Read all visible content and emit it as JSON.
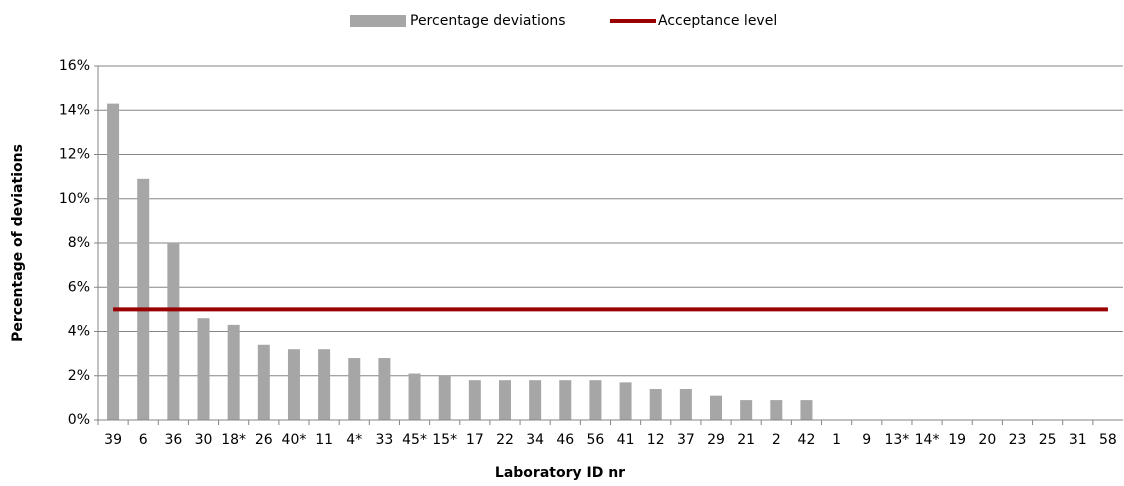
{
  "chart_data": {
    "type": "bar",
    "xlabel": "Laboratory ID nr",
    "ylabel": "Percentage of  deviations",
    "categories": [
      "39",
      "6",
      "36",
      "30",
      "18*",
      "26",
      "40*",
      "11",
      "4*",
      "33",
      "45*",
      "15*",
      "17",
      "22",
      "34",
      "46",
      "56",
      "41",
      "12",
      "37",
      "29",
      "21",
      "2",
      "42",
      "1",
      "9",
      "13*",
      "14*",
      "19",
      "20",
      "23",
      "25",
      "31",
      "58"
    ],
    "series": [
      {
        "name": "Percentage deviations",
        "type": "bar",
        "color": "#a6a6a6",
        "values": [
          14.3,
          10.9,
          8.0,
          4.6,
          4.3,
          3.4,
          3.2,
          3.2,
          2.8,
          2.8,
          2.1,
          2.0,
          1.8,
          1.8,
          1.8,
          1.8,
          1.8,
          1.7,
          1.4,
          1.4,
          1.1,
          0.9,
          0.9,
          0.9,
          0,
          0,
          0,
          0,
          0,
          0,
          0,
          0,
          0,
          0
        ]
      },
      {
        "name": "Acceptance level",
        "type": "line",
        "color": "#990000",
        "values": [
          5,
          5,
          5,
          5,
          5,
          5,
          5,
          5,
          5,
          5,
          5,
          5,
          5,
          5,
          5,
          5,
          5,
          5,
          5,
          5,
          5,
          5,
          5,
          5,
          5,
          5,
          5,
          5,
          5,
          5,
          5,
          5,
          5,
          5
        ]
      }
    ],
    "ylim": [
      0,
      16
    ],
    "yticks": [
      {
        "value": 0,
        "label": "0%"
      },
      {
        "value": 2,
        "label": "2%"
      },
      {
        "value": 4,
        "label": "4%"
      },
      {
        "value": 6,
        "label": "6%"
      },
      {
        "value": 8,
        "label": "8%"
      },
      {
        "value": 10,
        "label": "10%"
      },
      {
        "value": 12,
        "label": "12%"
      },
      {
        "value": 14,
        "label": "14%"
      },
      {
        "value": 16,
        "label": "16%"
      }
    ],
    "grid": true,
    "legend": "top"
  }
}
